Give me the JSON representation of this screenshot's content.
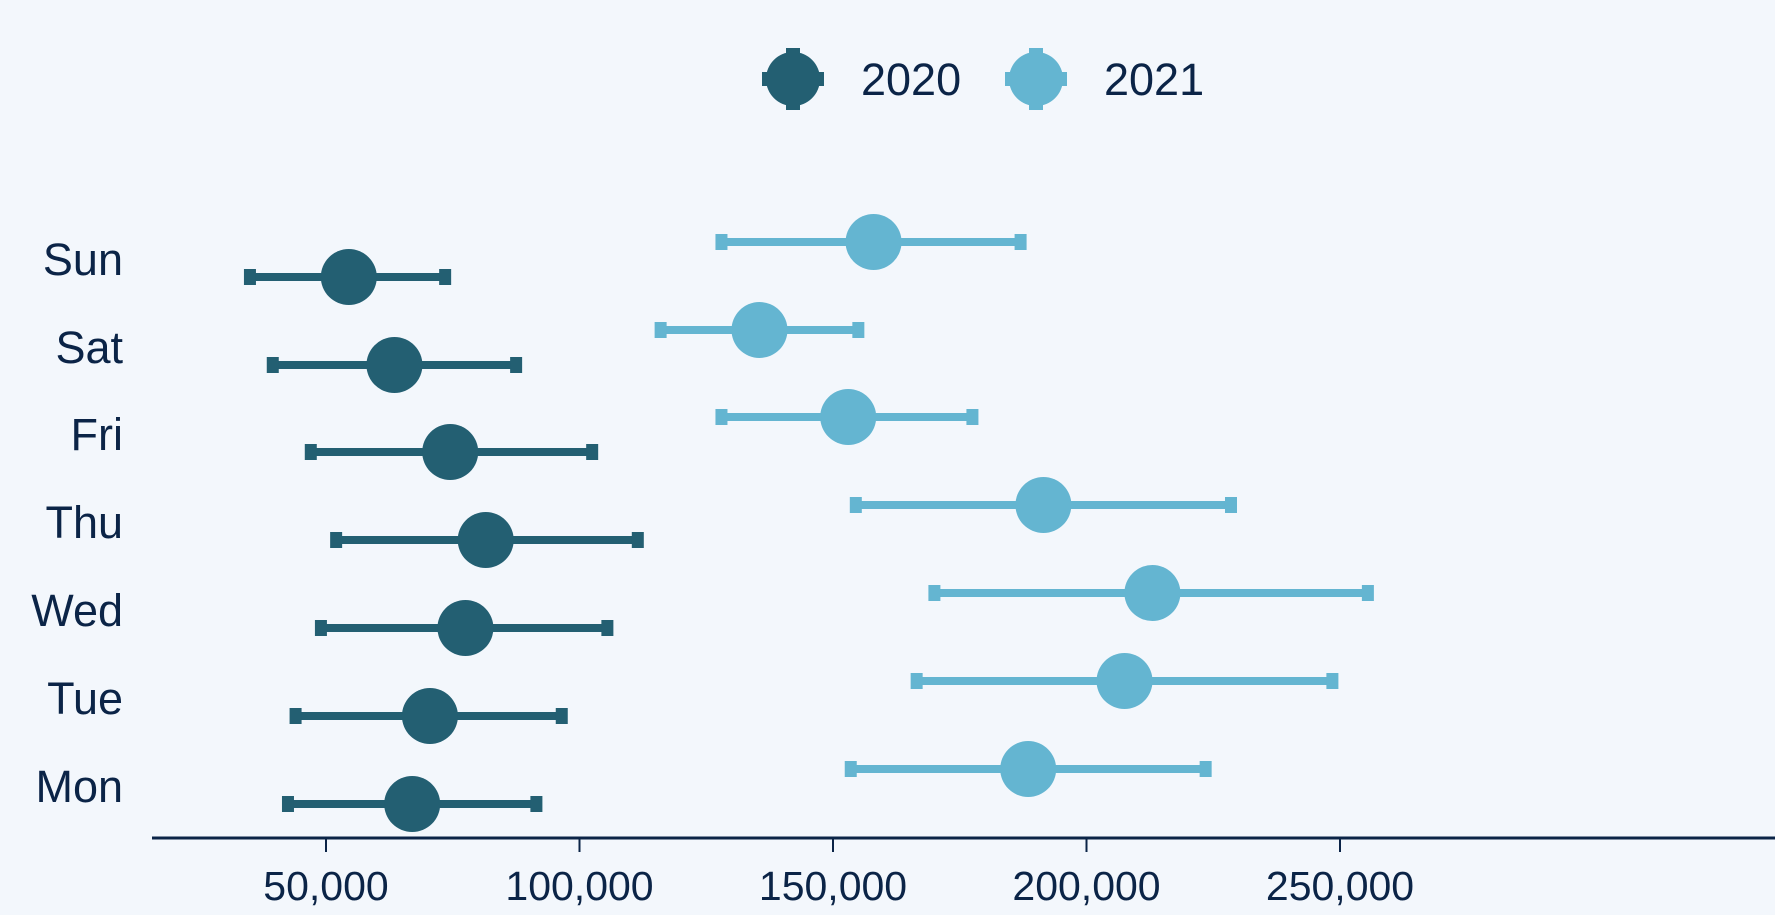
{
  "chart_data": {
    "type": "dot-errorbar",
    "title": "",
    "xlabel": "",
    "ylabel": "",
    "categories": [
      "Mon",
      "Tue",
      "Wed",
      "Thu",
      "Fri",
      "Sat",
      "Sun"
    ],
    "xlim": [
      25000,
      256000
    ],
    "x_ticks": [
      50000,
      100000,
      150000,
      200000,
      250000
    ],
    "x_tick_labels": [
      "50,000",
      "100,000",
      "150,000",
      "200,000",
      "250,000"
    ],
    "legend_position": "top-center",
    "grid": false,
    "series": [
      {
        "name": "2020",
        "color": "#235f72",
        "points": [
          {
            "category": "Mon",
            "value": 67000,
            "low": 42500,
            "high": 91500
          },
          {
            "category": "Tue",
            "value": 70500,
            "low": 44000,
            "high": 96500
          },
          {
            "category": "Wed",
            "value": 77500,
            "low": 49000,
            "high": 105500
          },
          {
            "category": "Thu",
            "value": 81500,
            "low": 52000,
            "high": 111500
          },
          {
            "category": "Fri",
            "value": 74500,
            "low": 47000,
            "high": 102500
          },
          {
            "category": "Sat",
            "value": 63500,
            "low": 39500,
            "high": 87500
          },
          {
            "category": "Sun",
            "value": 54500,
            "low": 35000,
            "high": 73500
          }
        ]
      },
      {
        "name": "2021",
        "color": "#64b5d1",
        "points": [
          {
            "category": "Mon",
            "value": 188500,
            "low": 153500,
            "high": 223500
          },
          {
            "category": "Tue",
            "value": 207500,
            "low": 166500,
            "high": 248500
          },
          {
            "category": "Wed",
            "value": 213000,
            "low": 170000,
            "high": 255500
          },
          {
            "category": "Thu",
            "value": 191500,
            "low": 154500,
            "high": 228500
          },
          {
            "category": "Fri",
            "value": 153000,
            "low": 128000,
            "high": 177500
          },
          {
            "category": "Sat",
            "value": 135500,
            "low": 116000,
            "high": 155000
          },
          {
            "category": "Sun",
            "value": 158000,
            "low": 128000,
            "high": 187000
          }
        ]
      }
    ]
  }
}
